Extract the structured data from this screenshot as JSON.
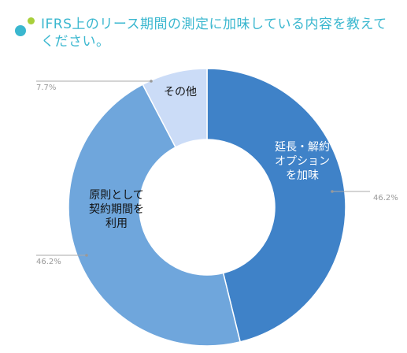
{
  "header": {
    "title": "IFRS上のリース期間の測定に加味している内容を教えてください。",
    "title_color": "#3ab7cf",
    "dot_colors": [
      "#3ab7cf",
      "#a8cf3a"
    ]
  },
  "chart_data": {
    "type": "pie",
    "variant": "donut",
    "title": "IFRS上のリース期間の測定に加味している内容を教えてください。",
    "slices": [
      {
        "label": "延長・解約オプションを加味",
        "lines": [
          "延長・解約",
          "オプション",
          "を加味"
        ],
        "value": 46.2,
        "value_label": "46.2%",
        "color": "#3f82c8"
      },
      {
        "label": "原則として契約期間を利用",
        "lines": [
          "原則として",
          "契約期間を",
          "利用"
        ],
        "value": 46.2,
        "value_label": "46.2%",
        "color": "#6fa6dc"
      },
      {
        "label": "その他",
        "lines": [
          "その他"
        ],
        "value": 7.7,
        "value_label": "7.7%",
        "color": "#cbdcf7"
      }
    ],
    "inner_label_colors": [
      "#ffffff",
      "#111111",
      "#111111"
    ],
    "legend": "none",
    "start": "top",
    "direction": "clockwise"
  }
}
